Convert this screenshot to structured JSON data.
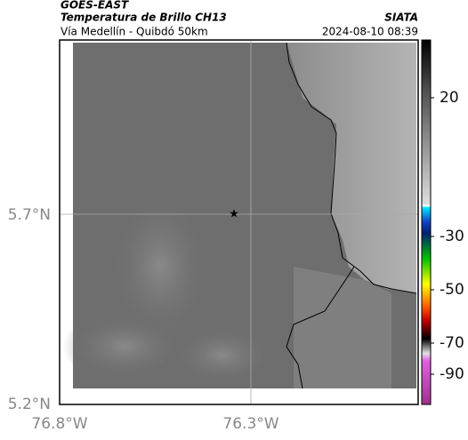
{
  "header": {
    "satellite": "GOES-EAST",
    "product": "Temperatura de Brillo CH13",
    "route": "Vía Medellín - Quibdó 50km",
    "source": "SIATA",
    "timestamp": "2024-08-10 08:39"
  },
  "axes": {
    "lat_labels": [
      "5.7°N",
      "5.2°N"
    ],
    "lon_labels": [
      "76.8°W",
      "76.3°W"
    ]
  },
  "colorbar": {
    "ticks": [
      "20",
      "-30",
      "-50",
      "-70",
      "-90"
    ]
  }
}
